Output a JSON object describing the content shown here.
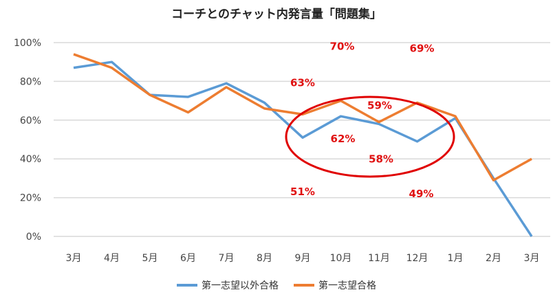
{
  "chart_data": {
    "type": "line",
    "title": "コーチとのチャット内発言量「問題集」",
    "categories": [
      "3月",
      "4月",
      "5月",
      "6月",
      "7月",
      "8月",
      "9月",
      "10月",
      "11月",
      "12月",
      "1月",
      "2月",
      "3月"
    ],
    "ylim": [
      0,
      100
    ],
    "yticks": [
      "0%",
      "20%",
      "40%",
      "60%",
      "80%",
      "100%"
    ],
    "grid": true,
    "legend": "bottom",
    "series": [
      {
        "name": "第一志望以外合格",
        "color": "#5B9BD5",
        "values": [
          87,
          90,
          73,
          72,
          79,
          69,
          51,
          62,
          58,
          49,
          61,
          30,
          0
        ]
      },
      {
        "name": "第一志望合格",
        "color": "#ED7D31",
        "values": [
          94,
          87,
          73,
          64,
          77,
          66,
          63,
          70,
          59,
          69,
          62,
          29,
          40
        ]
      }
    ],
    "annotations": [
      {
        "text": "63%",
        "series": 1,
        "category": 6
      },
      {
        "text": "70%",
        "series": 1,
        "category": 7
      },
      {
        "text": "59%",
        "series": 1,
        "category": 8
      },
      {
        "text": "69%",
        "series": 1,
        "category": 9
      },
      {
        "text": "51%",
        "series": 0,
        "category": 6
      },
      {
        "text": "62%",
        "series": 0,
        "category": 7
      },
      {
        "text": "58%",
        "series": 0,
        "category": 8
      },
      {
        "text": "49%",
        "series": 0,
        "category": 9
      }
    ],
    "highlight_color": "#E00000"
  }
}
